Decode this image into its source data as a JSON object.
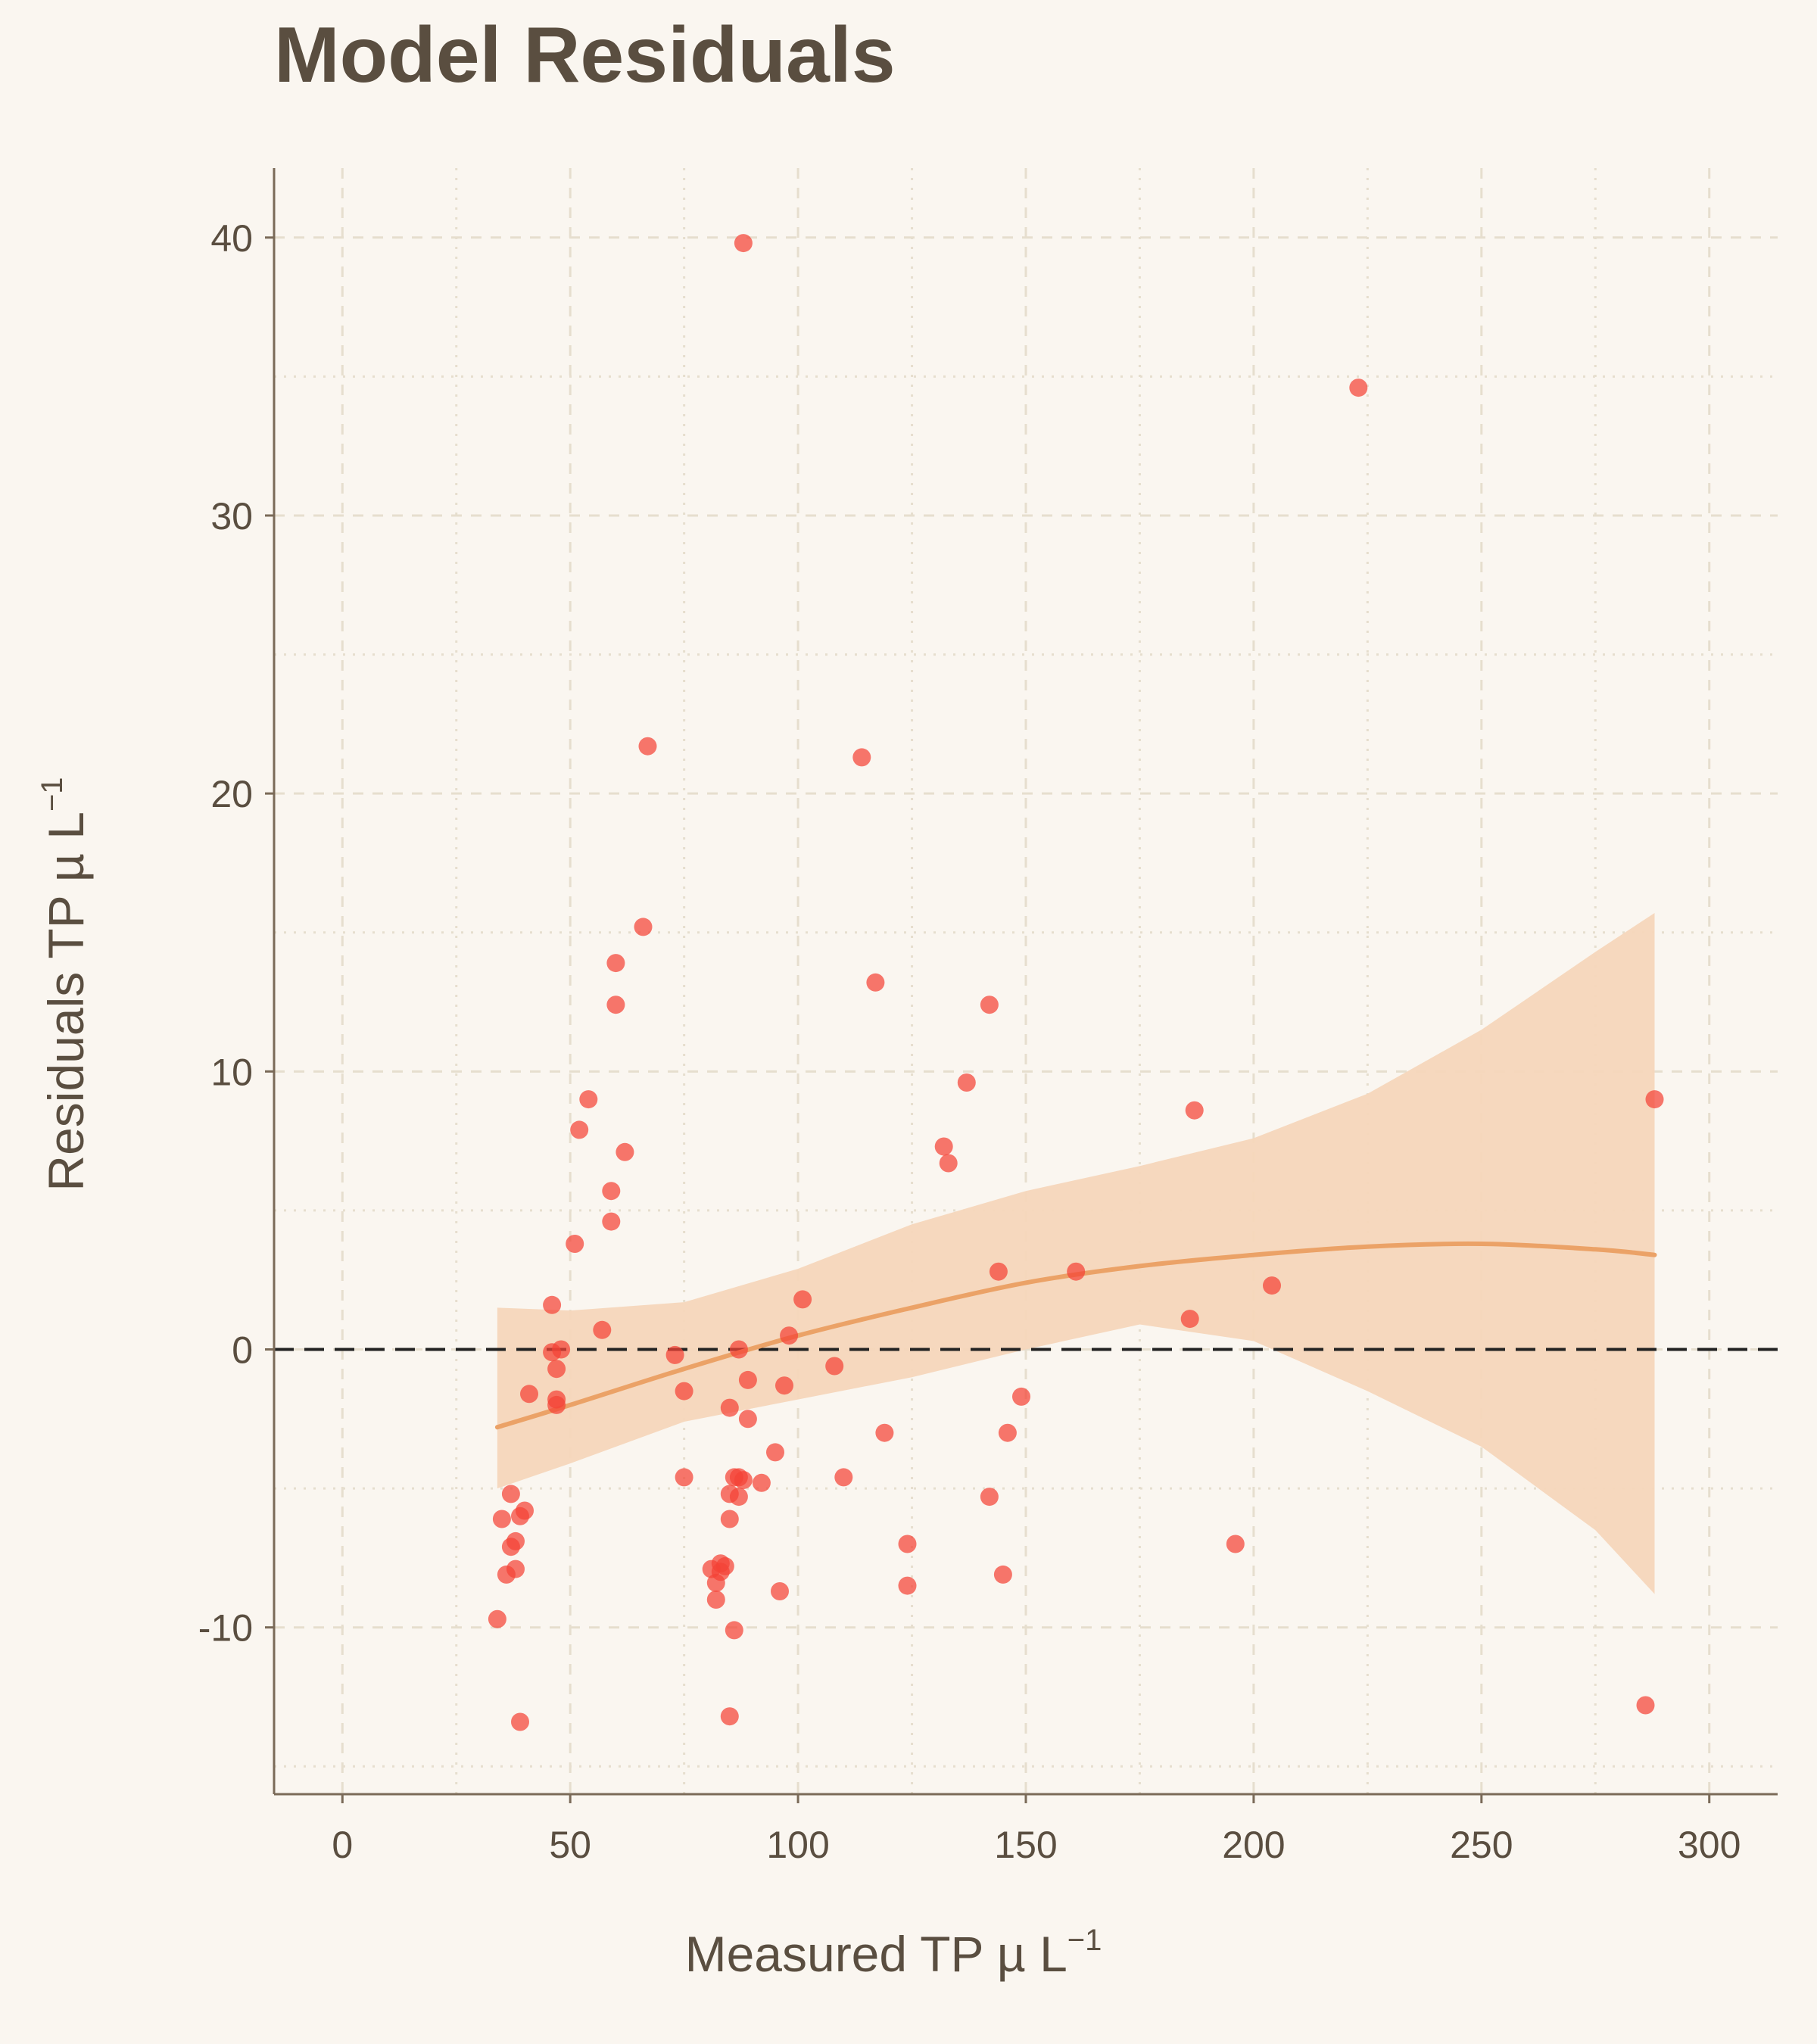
{
  "chart_data": {
    "type": "scatter",
    "title": "Model Residuals",
    "xlabel": "Measured TP µ L",
    "xlabel_sup": "−1",
    "ylabel": "Residuals TP µ L",
    "ylabel_sup": "−1",
    "xlim": [
      -15,
      315
    ],
    "ylim": [
      -16,
      42.5
    ],
    "x_ticks": [
      0,
      50,
      100,
      150,
      200,
      250,
      300
    ],
    "y_ticks": [
      -10,
      0,
      10,
      20,
      30,
      40
    ],
    "grid": true,
    "reference_line_y": 0,
    "colors": {
      "background": "#faf6f0",
      "points": "#f44336",
      "trend": "#eba267",
      "band": "#f6d6bb",
      "text": "#5a4e40",
      "axis": "#7a6a58",
      "grid": "#e6dece",
      "reference_line": "#222222"
    },
    "points": [
      {
        "x": 88,
        "y": 39.8
      },
      {
        "x": 223,
        "y": 34.6
      },
      {
        "x": 67,
        "y": 21.7
      },
      {
        "x": 114,
        "y": 21.3
      },
      {
        "x": 66,
        "y": 15.2
      },
      {
        "x": 60,
        "y": 13.9
      },
      {
        "x": 117,
        "y": 13.2
      },
      {
        "x": 60,
        "y": 12.4
      },
      {
        "x": 142,
        "y": 12.4
      },
      {
        "x": 137,
        "y": 9.6
      },
      {
        "x": 54,
        "y": 9.0
      },
      {
        "x": 288,
        "y": 9.0
      },
      {
        "x": 187,
        "y": 8.6
      },
      {
        "x": 52,
        "y": 7.9
      },
      {
        "x": 132,
        "y": 7.3
      },
      {
        "x": 62,
        "y": 7.1
      },
      {
        "x": 133,
        "y": 6.7
      },
      {
        "x": 59,
        "y": 5.7
      },
      {
        "x": 59,
        "y": 4.6
      },
      {
        "x": 51,
        "y": 3.8
      },
      {
        "x": 144,
        "y": 2.8
      },
      {
        "x": 161,
        "y": 2.8
      },
      {
        "x": 204,
        "y": 2.3
      },
      {
        "x": 101,
        "y": 1.8
      },
      {
        "x": 46,
        "y": 1.6
      },
      {
        "x": 186,
        "y": 1.1
      },
      {
        "x": 57,
        "y": 0.7
      },
      {
        "x": 98,
        "y": 0.5
      },
      {
        "x": 48,
        "y": 0.0
      },
      {
        "x": 87,
        "y": 0.0
      },
      {
        "x": 46,
        "y": -0.1
      },
      {
        "x": 73,
        "y": -0.2
      },
      {
        "x": 108,
        "y": -0.6
      },
      {
        "x": 47,
        "y": -0.7
      },
      {
        "x": 89,
        "y": -1.1
      },
      {
        "x": 97,
        "y": -1.3
      },
      {
        "x": 75,
        "y": -1.5
      },
      {
        "x": 41,
        "y": -1.6
      },
      {
        "x": 149,
        "y": -1.7
      },
      {
        "x": 47,
        "y": -1.8
      },
      {
        "x": 47,
        "y": -2.0
      },
      {
        "x": 85,
        "y": -2.1
      },
      {
        "x": 89,
        "y": -2.5
      },
      {
        "x": 119,
        "y": -3.0
      },
      {
        "x": 146,
        "y": -3.0
      },
      {
        "x": 95,
        "y": -3.7
      },
      {
        "x": 75,
        "y": -4.6
      },
      {
        "x": 86,
        "y": -4.6
      },
      {
        "x": 87,
        "y": -4.6
      },
      {
        "x": 110,
        "y": -4.6
      },
      {
        "x": 88,
        "y": -4.7
      },
      {
        "x": 92,
        "y": -4.8
      },
      {
        "x": 37,
        "y": -5.2
      },
      {
        "x": 85,
        "y": -5.2
      },
      {
        "x": 87,
        "y": -5.3
      },
      {
        "x": 142,
        "y": -5.3
      },
      {
        "x": 40,
        "y": -5.8
      },
      {
        "x": 39,
        "y": -6.0
      },
      {
        "x": 35,
        "y": -6.1
      },
      {
        "x": 85,
        "y": -6.1
      },
      {
        "x": 38,
        "y": -6.9
      },
      {
        "x": 124,
        "y": -7.0
      },
      {
        "x": 196,
        "y": -7.0
      },
      {
        "x": 37,
        "y": -7.1
      },
      {
        "x": 83,
        "y": -7.7
      },
      {
        "x": 84,
        "y": -7.8
      },
      {
        "x": 38,
        "y": -7.9
      },
      {
        "x": 81,
        "y": -7.9
      },
      {
        "x": 83,
        "y": -8.0
      },
      {
        "x": 36,
        "y": -8.1
      },
      {
        "x": 145,
        "y": -8.1
      },
      {
        "x": 82,
        "y": -8.4
      },
      {
        "x": 124,
        "y": -8.5
      },
      {
        "x": 96,
        "y": -8.7
      },
      {
        "x": 82,
        "y": -9.0
      },
      {
        "x": 34,
        "y": -9.7
      },
      {
        "x": 86,
        "y": -10.1
      },
      {
        "x": 286,
        "y": -12.8
      },
      {
        "x": 85,
        "y": -13.2
      },
      {
        "x": 39,
        "y": -13.4
      }
    ],
    "trend": {
      "x": [
        34,
        50,
        75,
        100,
        125,
        150,
        175,
        200,
        225,
        250,
        275,
        288
      ],
      "y": [
        -2.8,
        -2.0,
        -0.7,
        0.5,
        1.5,
        2.4,
        3.0,
        3.4,
        3.7,
        3.8,
        3.6,
        3.4
      ],
      "lower": [
        -5.0,
        -4.1,
        -2.6,
        -1.8,
        -1.0,
        0.0,
        0.9,
        0.3,
        -1.5,
        -3.5,
        -6.5,
        -8.8
      ],
      "upper": [
        1.5,
        1.4,
        1.7,
        2.9,
        4.5,
        5.7,
        6.6,
        7.6,
        9.2,
        11.5,
        14.3,
        15.7
      ]
    }
  }
}
